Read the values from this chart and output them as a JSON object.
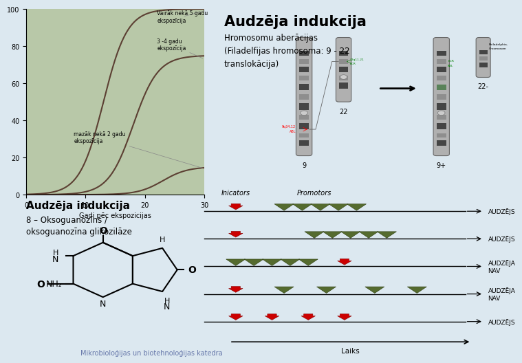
{
  "bg_color": "#dce8f0",
  "title1": "Audzēja indukcija",
  "subtitle1": "Hromosomu aberācijas\n(Filadelfijas hromosoma: 9 - 22\ntranslokācija)",
  "title2": "Audzēja indukcija",
  "subtitle2": "8 – Oksoguanozīns /\noksoguanozīna glikozilāze",
  "xlabel": "Gadi pēc ekspozicijas",
  "yticks": [
    0,
    20,
    40,
    60,
    80,
    100
  ],
  "xticks": [
    0,
    10,
    20,
    30
  ],
  "curve1_label": "Vairāk nekā 5 gadu\nekspozīcija",
  "curve2_label": "3 -4 gadu\nekspozīcija",
  "curve3_label": "mazāk nekā 2 gadu\nekspozīcija",
  "footer": "Mikrobioloģijas un biotehnoloģijas katedra",
  "diagram_labels": [
    "Inicators",
    "Promotors"
  ],
  "outcome_labels": [
    "AUDZĒJS",
    "AUDZĒJS",
    "AUDZĒJA\nNAV",
    "AUDZĒJA\nNAV",
    "AUDZĒJS"
  ],
  "time_label": "Laiks",
  "curve_color": "#5c4033",
  "bg_plot_color": "#b8c8a8"
}
